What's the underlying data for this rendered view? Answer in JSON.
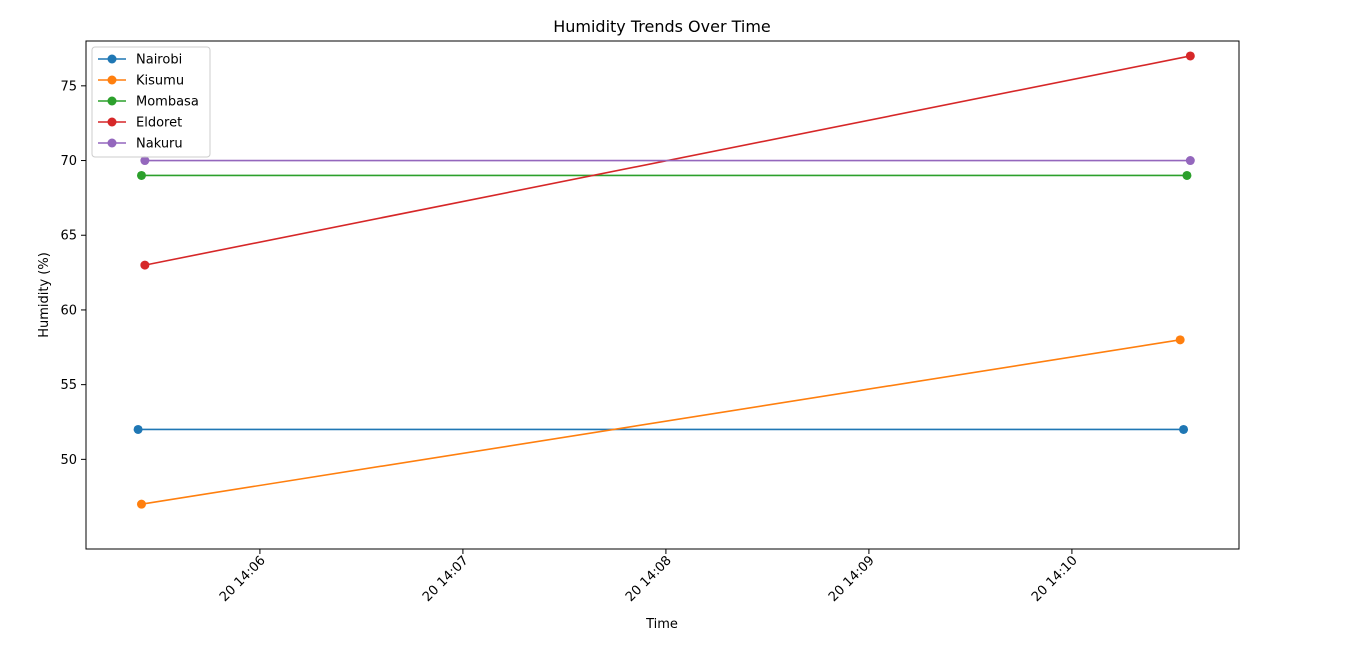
{
  "chart_data": {
    "type": "line",
    "title": "Humidity Trends Over Time",
    "xlabel": "Time",
    "ylabel": "Humidity (%)",
    "x": [
      "2024-xx-20 14:05:24",
      "2024-xx-20 14:10:33"
    ],
    "x_ticks": [
      "20 14:06",
      "20 14:07",
      "20 14:08",
      "20 14:09",
      "20 14:10"
    ],
    "y_ticks": [
      50,
      55,
      60,
      65,
      70,
      75
    ],
    "ylim": [
      44,
      78
    ],
    "legend_position": "top-left",
    "grid": false,
    "series": [
      {
        "name": "Nairobi",
        "color": "#1f77b4",
        "times": [
          "14:05:24",
          "14:10:33"
        ],
        "values": [
          52,
          52
        ]
      },
      {
        "name": "Kisumu",
        "color": "#ff7f0e",
        "times": [
          "14:05:25",
          "14:10:32"
        ],
        "values": [
          47,
          58
        ]
      },
      {
        "name": "Mombasa",
        "color": "#2ca02c",
        "times": [
          "14:05:25",
          "14:10:34"
        ],
        "values": [
          69,
          69
        ]
      },
      {
        "name": "Eldoret",
        "color": "#d62728",
        "times": [
          "14:05:26",
          "14:10:35"
        ],
        "values": [
          63,
          77
        ]
      },
      {
        "name": "Nakuru",
        "color": "#9467bd",
        "times": [
          "14:05:26",
          "14:10:35"
        ],
        "values": [
          70,
          70
        ]
      }
    ]
  }
}
